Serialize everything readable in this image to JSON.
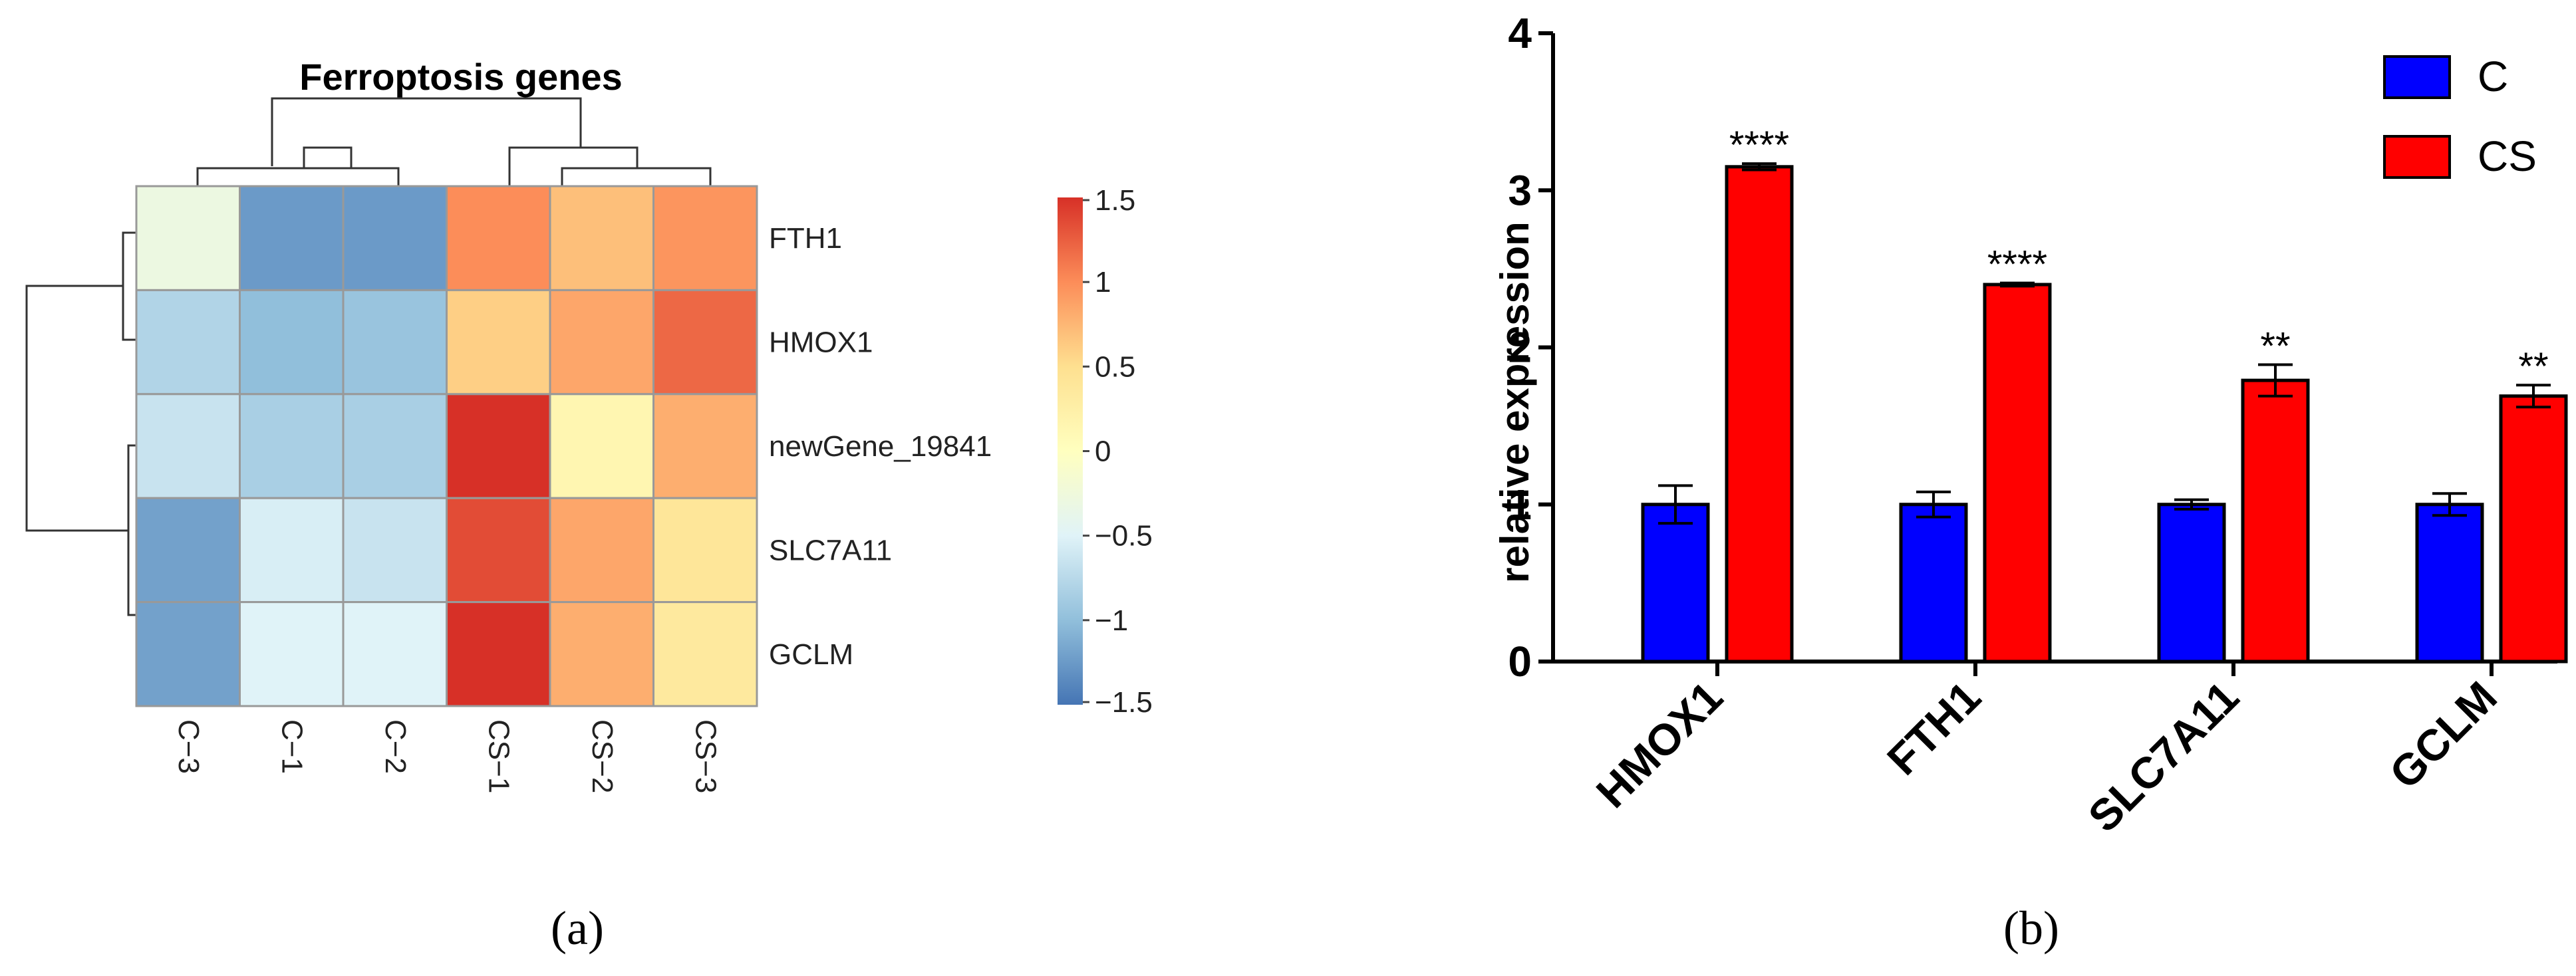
{
  "figure": {
    "panel_a_label": "(a)",
    "panel_b_label": "(b)"
  },
  "chart_data": [
    {
      "type": "heatmap",
      "title": "Ferroptosis genes",
      "columns": [
        "C−3",
        "C−1",
        "C−2",
        "CS−1",
        "CS−2",
        "CS−3"
      ],
      "rows": [
        "FTH1",
        "HMOX1",
        "newGene_19841",
        "SLC7A11",
        "GCLM"
      ],
      "values": [
        [
          -0.3,
          -1.25,
          -1.25,
          1.0,
          0.7,
          0.95
        ],
        [
          -0.8,
          -1.0,
          -0.95,
          0.6,
          0.85,
          1.2
        ],
        [
          -0.65,
          -0.85,
          -0.85,
          1.5,
          0.15,
          0.8
        ],
        [
          -1.2,
          -0.55,
          -0.65,
          1.35,
          0.85,
          0.4
        ],
        [
          -1.2,
          -0.5,
          -0.5,
          1.5,
          0.8,
          0.35
        ]
      ],
      "colorbar": {
        "ticks": [
          1.5,
          1,
          0.5,
          0,
          -0.5,
          -1,
          -1.5
        ],
        "tick_labels": [
          "1.5",
          "1",
          "0.5",
          "0",
          "−0.5",
          "−1",
          "−1.5"
        ],
        "range": [
          -1.5,
          1.5
        ],
        "colors": [
          "#4575b4",
          "#91bfdb",
          "#e0f3f8",
          "#ffffbf",
          "#fee090",
          "#fc8d59",
          "#d73027"
        ]
      },
      "dendrogram": "row and column clustering shown"
    },
    {
      "type": "bar",
      "categories": [
        "HMOX1",
        "FTH1",
        "SLC7A11",
        "GCLM"
      ],
      "series": [
        {
          "name": "C",
          "color": "#0000ff",
          "values": [
            1.0,
            1.0,
            1.0,
            1.0
          ],
          "errors": [
            0.12,
            0.08,
            0.03,
            0.07
          ]
        },
        {
          "name": "CS",
          "color": "#ff0000",
          "values": [
            3.15,
            2.4,
            1.79,
            1.69
          ],
          "errors": [
            0.02,
            0.01,
            0.1,
            0.07
          ]
        }
      ],
      "significance": [
        "****",
        "****",
        "**",
        "**"
      ],
      "ylabel": "relative expression",
      "xlabel": "",
      "ylim": [
        0,
        4
      ],
      "yticks": [
        0,
        1,
        2,
        3,
        4
      ],
      "legend_position": "top-right"
    }
  ]
}
